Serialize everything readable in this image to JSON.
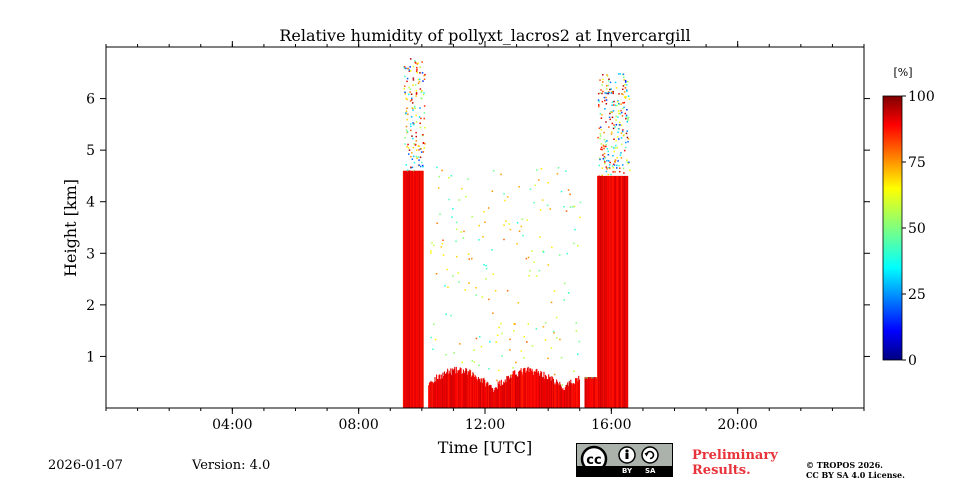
{
  "chart_data": {
    "type": "heatmap",
    "title": "Relative humidity of pollyxt_lacros2 at Invercargill",
    "xlabel": "Time [UTC]",
    "ylabel": "Height [km]",
    "xlim": [
      0,
      24
    ],
    "ylim": [
      0,
      7
    ],
    "x_tick_labels": [
      "04:00",
      "08:00",
      "12:00",
      "16:00",
      "20:00"
    ],
    "x_tick_values": [
      4,
      8,
      12,
      16,
      20
    ],
    "y_tick_values": [
      1,
      2,
      3,
      4,
      5,
      6
    ],
    "y_tick_labels": [
      "1",
      "2",
      "3",
      "4",
      "5",
      "6"
    ],
    "colorbar": {
      "unit": "[%]",
      "range": [
        0,
        100
      ],
      "tick_values": [
        0,
        25,
        50,
        75,
        100
      ],
      "tick_labels": [
        "0",
        "25",
        "50",
        "75",
        "100"
      ],
      "colormap": "jet"
    },
    "segments": [
      {
        "start": 9.4,
        "end": 10.05,
        "top_km": 4.6,
        "sparse_top_km": 6.8
      },
      {
        "start": 10.2,
        "end": 15.0,
        "top_km": 0.7,
        "sparse_top_km": 4.7
      },
      {
        "start": 15.15,
        "end": 15.55,
        "top_km": 0.6,
        "sparse_top_km": 0.6
      },
      {
        "start": 15.55,
        "end": 16.5,
        "top_km": 4.5,
        "sparse_top_km": 6.5
      }
    ],
    "surface_rh_percent": 85
  },
  "footer": {
    "date": "2026-01-07",
    "version": "Version: 4.0",
    "preliminary_line1": "Preliminary",
    "preliminary_line2": "Results.",
    "copyright_line1": "© TROPOS 2026.",
    "copyright_line2": "CC BY SA 4.0 License.",
    "badge_by": "BY",
    "badge_sa": "SA",
    "badge_cc": "cc"
  },
  "colors": {
    "prelim": "#e8333a",
    "badge_bg": "#aab2ab"
  }
}
